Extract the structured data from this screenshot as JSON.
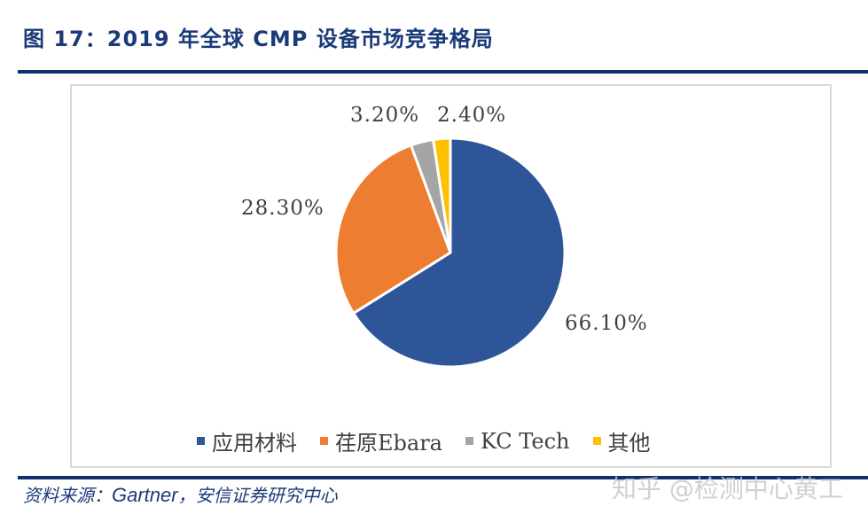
{
  "header": {
    "title": "图 17：2019 年全球 CMP 设备市场竞争格局"
  },
  "chart_data": {
    "type": "pie",
    "title": "2019 年全球 CMP 设备市场竞争格局",
    "categories": [
      "应用材料",
      "荏原Ebara",
      "KC Tech",
      "其他"
    ],
    "values": [
      66.1,
      28.3,
      3.2,
      2.4
    ],
    "labels": [
      "66.10%",
      "28.30%",
      "3.20%",
      "2.40%"
    ],
    "colors": [
      "#2e5597",
      "#ed7d31",
      "#a5a5a5",
      "#ffc000"
    ],
    "start_angle_deg": 0,
    "direction": "clockwise",
    "legend_position": "bottom",
    "unit": "%"
  },
  "legend": {
    "items": [
      {
        "label": "应用材料",
        "color": "#2e5597"
      },
      {
        "label": "荏原Ebara",
        "color": "#ed7d31"
      },
      {
        "label": "KC Tech",
        "color": "#a5a5a5"
      },
      {
        "label": "其他",
        "color": "#ffc000"
      }
    ]
  },
  "labels": {
    "l0": "66.10%",
    "l1": "28.30%",
    "l2": "3.20%",
    "l3": "2.40%"
  },
  "footer": {
    "source_prefix": "资料来源：",
    "source_en": "Gartner",
    "source_suffix": "，安信证券研究中心",
    "watermark": "知乎 @检测中心黄工"
  }
}
